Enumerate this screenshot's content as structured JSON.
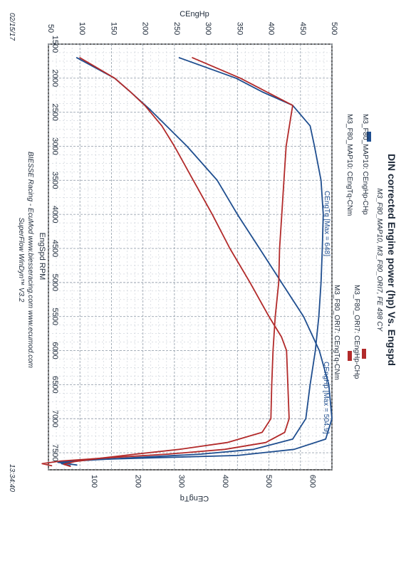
{
  "header": {
    "title": "DIN corrected Engine power (hp) Vs. Engspd",
    "subtitle": "M3_F80_MAP10, M3_F80_ORI7, FE 498 CY",
    "date": "02/15/17",
    "time": "13:34:40"
  },
  "footer": {
    "line1": "BIESSE Racing - EcuMod www.biesseracing.com www.ecumod.com",
    "line2": "SuperFlow WinDyn™ V3.2"
  },
  "legend": [
    {
      "name": "M3_F80_MAP10: CEngHp-CHp",
      "color": "#1f4e8f"
    },
    {
      "name": "M3_F80_MAP10: CEngTq-CNm",
      "color": "#1f4e8f"
    },
    {
      "name": "M3_F80_ORI7: CEngHp-CHp",
      "color": "#b22a2a"
    },
    {
      "name": "M3_F80_ORI7: CEngTq-CNm",
      "color": "#b22a2a"
    }
  ],
  "annotations": {
    "tq_max": "CEngTq [Max = 648]",
    "hp_max": "CEngHp [Max = 504.9]"
  },
  "chart_data": {
    "type": "line",
    "xlabel": "EngSpd RPM",
    "ylabel_left": "CEngHp",
    "ylabel_right": "CEngTq",
    "xlim": [
      1500,
      7750
    ],
    "ylim_left": [
      50,
      500
    ],
    "ylim_right": [
      0,
      650
    ],
    "x_ticks": [
      "1500",
      "2000",
      "2500",
      "3000",
      "3500",
      "4000",
      "4500",
      "5000",
      "5500",
      "6000",
      "6500",
      "7000",
      "7500"
    ],
    "hp_ticks": [
      "500",
      "450",
      "400",
      "350",
      "300",
      "250",
      "200",
      "150",
      "100",
      "50"
    ],
    "tq_ticks": [
      "600",
      "500",
      "400",
      "300",
      "200",
      "100"
    ],
    "grid": true,
    "series": [
      {
        "name": "M3_F80_MAP10: CEngHp-CHp",
        "color": "#1f4e8f",
        "axis": "hp",
        "x": [
          1700,
          2000,
          2200,
          2450,
          3000,
          3500,
          4000,
          4500,
          5000,
          5500,
          6000,
          6500,
          7000,
          7300,
          7450,
          7540,
          7570,
          7600,
          7640,
          7660,
          7680
        ],
        "y": [
          95,
          155,
          180,
          210,
          270,
          318,
          350,
          385,
          420,
          455,
          480,
          495,
          500,
          490,
          440,
          350,
          230,
          120,
          65,
          80,
          95
        ]
      },
      {
        "name": "M3_F80_MAP10: CEngTq-CNm",
        "color": "#1f4e8f",
        "axis": "tq",
        "x": [
          1700,
          2000,
          2200,
          2400,
          2700,
          3000,
          3500,
          4000,
          4500,
          5000,
          5500,
          6000,
          6500,
          7000,
          7300,
          7450,
          7520,
          7570,
          7620,
          7660,
          7690
        ],
        "y": [
          300,
          430,
          490,
          560,
          600,
          610,
          625,
          630,
          628,
          625,
          620,
          612,
          600,
          590,
          560,
          470,
          350,
          200,
          60,
          30,
          50
        ]
      },
      {
        "name": "M3_F80_ORI7: CEngHp-CHp",
        "color": "#b22a2a",
        "axis": "hp",
        "x": [
          1700,
          2000,
          2200,
          2400,
          2700,
          3000,
          3500,
          4000,
          4500,
          5000,
          5500,
          5800,
          6000,
          6500,
          7000,
          7200,
          7350,
          7450,
          7520,
          7570,
          7620,
          7660,
          7690
        ],
        "y": [
          100,
          155,
          180,
          203,
          230,
          250,
          280,
          310,
          338,
          370,
          400,
          420,
          428,
          430,
          432,
          425,
          395,
          330,
          240,
          150,
          70,
          40,
          55
        ]
      },
      {
        "name": "M3_F80_ORI7: CEngTq-CNm",
        "color": "#b22a2a",
        "axis": "tq",
        "x": [
          1700,
          2000,
          2200,
          2400,
          2600,
          3000,
          3500,
          4000,
          4500,
          5000,
          5500,
          6000,
          6500,
          7000,
          7200,
          7350,
          7450,
          7520,
          7580,
          7630,
          7670,
          7700
        ],
        "y": [
          330,
          440,
          500,
          560,
          555,
          545,
          540,
          535,
          530,
          528,
          520,
          515,
          512,
          510,
          490,
          410,
          300,
          200,
          120,
          60,
          35,
          50
        ]
      }
    ]
  }
}
